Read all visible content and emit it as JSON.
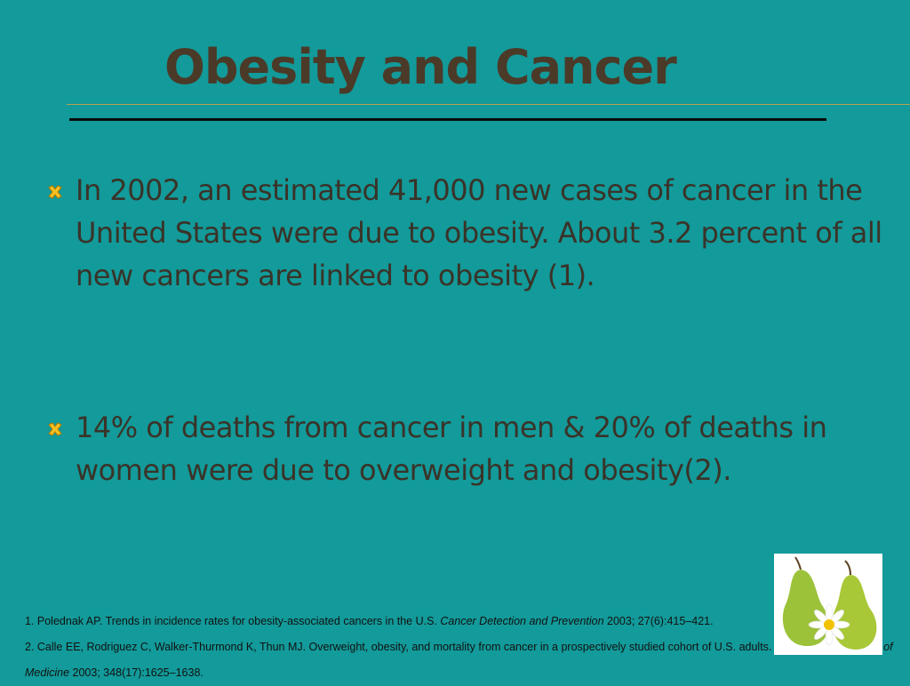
{
  "header": {
    "title": "Obesity and Cancer"
  },
  "bullets": [
    "In 2002, an estimated 41,000 new cases of cancer in the United States were due to obesity. About 3.2 percent of all new cancers are linked to obesity (1).",
    "14% of deaths from cancer in men & 20% of deaths in women were due to overweight and obesity(2)."
  ],
  "references": [
    {
      "text": "1. Polednak AP. Trends in incidence rates for obesity-associated cancers in the U.S.",
      "journal": "Cancer Detection and Prevention",
      "details": "2003; 27(6):415–421."
    },
    {
      "text": "2. Calle EE, Rodriguez C, Walker-Thurmond K, Thun MJ. Overweight, obesity, and mortality from cancer in a prospectively studied cohort of U.S. adults.",
      "journal": "New England Journal of Medicine",
      "details": "2003; 348(17):1625–1638."
    }
  ]
}
